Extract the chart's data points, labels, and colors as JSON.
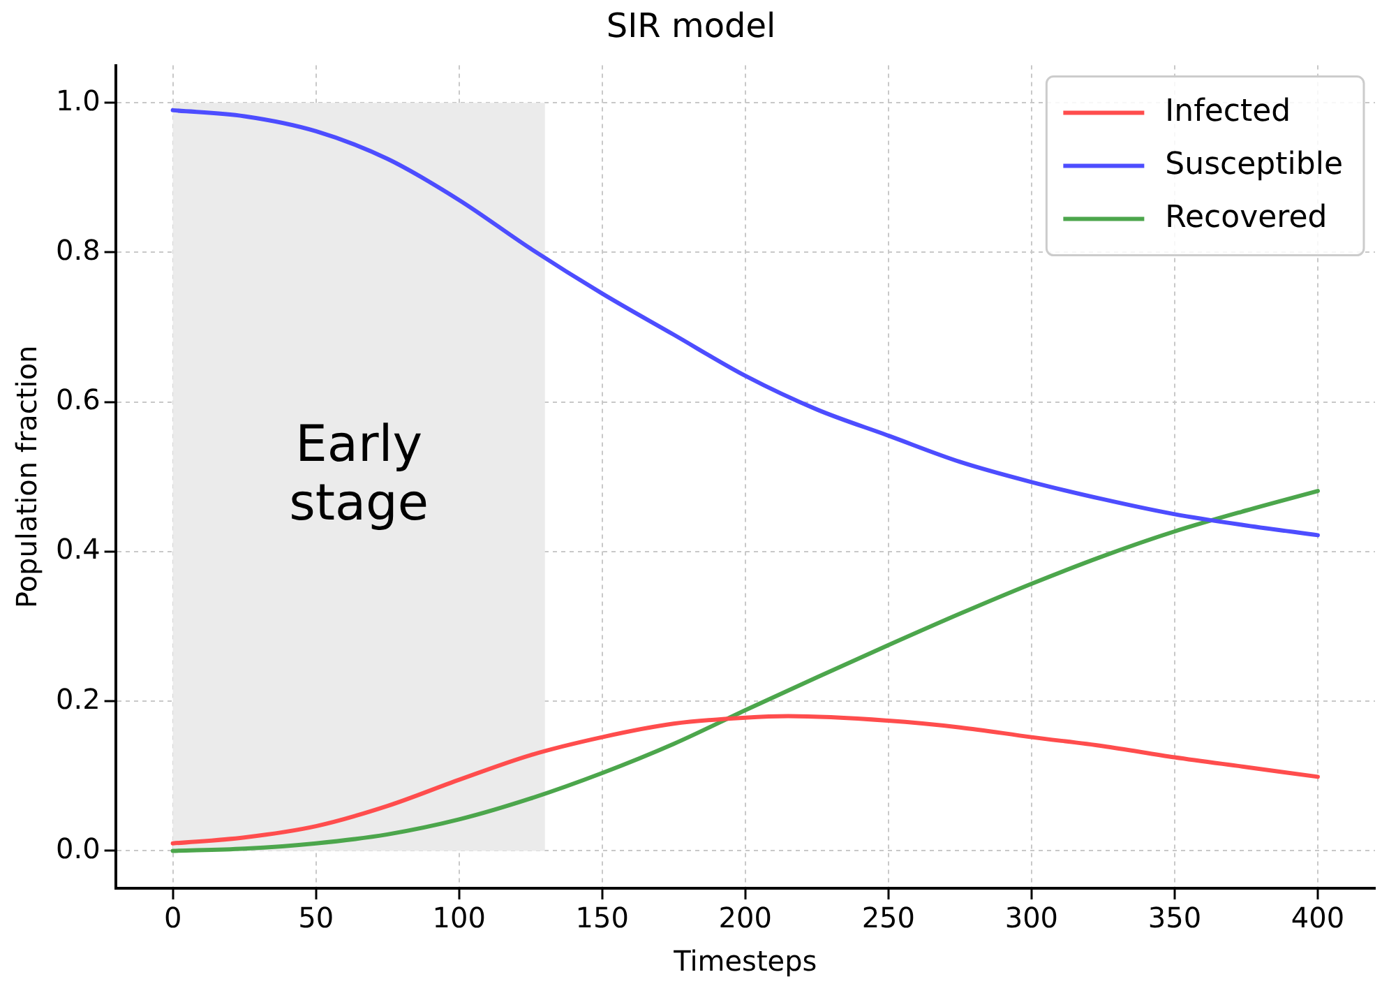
{
  "chart_data": {
    "type": "line",
    "title": "SIR model",
    "xlabel": "Timesteps",
    "ylabel": "Population fraction",
    "xlim": [
      -20,
      420
    ],
    "xticks": [
      0,
      50,
      100,
      150,
      200,
      250,
      300,
      350,
      400
    ],
    "ylim": [
      -0.05,
      1.05
    ],
    "yticks": [
      {
        "value": 0,
        "label": "0.0"
      },
      0.2,
      0.4,
      0.6,
      0.8,
      {
        "value": 1,
        "label": "1.0"
      }
    ],
    "grid": true,
    "legend": "top right",
    "line_style": "solid",
    "marker": "none",
    "bands": [
      {
        "axis": "x",
        "from": 0,
        "to": 130,
        "label": "Early stage",
        "color": "#ebebeb"
      }
    ],
    "series": [
      {
        "name": "Infected",
        "color": "#ff4d4d",
        "x": [
          0,
          25,
          50,
          75,
          100,
          125,
          150,
          175,
          200,
          215,
          250,
          275,
          300,
          325,
          350,
          375,
          400
        ],
        "values": [
          0.01,
          0.018,
          0.033,
          0.06,
          0.095,
          0.128,
          0.152,
          0.17,
          0.178,
          0.18,
          0.174,
          0.165,
          0.152,
          0.14,
          0.125,
          0.112,
          0.099
        ]
      },
      {
        "name": "Susceptible",
        "color": "#4d4dff",
        "x": [
          0,
          25,
          50,
          75,
          100,
          125,
          150,
          175,
          200,
          225,
          250,
          275,
          300,
          325,
          350,
          375,
          400
        ],
        "values": [
          0.99,
          0.982,
          0.962,
          0.925,
          0.87,
          0.805,
          0.745,
          0.69,
          0.635,
          0.59,
          0.555,
          0.52,
          0.493,
          0.47,
          0.45,
          0.435,
          0.422
        ]
      },
      {
        "name": "Recovered",
        "color": "#4ca64c",
        "x": [
          0,
          25,
          50,
          75,
          100,
          125,
          150,
          175,
          200,
          225,
          250,
          275,
          300,
          325,
          350,
          375,
          400
        ],
        "values": [
          0,
          0.003,
          0.01,
          0.022,
          0.042,
          0.07,
          0.104,
          0.143,
          0.188,
          0.232,
          0.275,
          0.317,
          0.357,
          0.394,
          0.427,
          0.455,
          0.481
        ]
      }
    ]
  }
}
